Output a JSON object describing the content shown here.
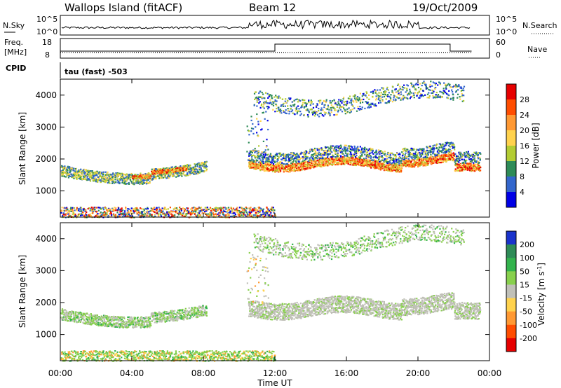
{
  "header": {
    "station": "Wallops Island (fitACF)",
    "beam": "Beam 12",
    "date": "19/Oct/2009"
  },
  "panels_top": {
    "nsky_label": "N.Sky",
    "nsky_ticks": [
      "10^5",
      "10^0"
    ],
    "nsearch_label": "N.Search",
    "nsearch_ticks": [
      "10^5",
      "10^0"
    ],
    "freq_label": "Freq.",
    "freq_unit": "[MHz]",
    "freq_ticks": [
      "18",
      "8"
    ],
    "nave_label": "Nave",
    "nave_ticks": [
      "60",
      "0"
    ],
    "cpid_label": "CPID",
    "cpid_text": "tau (fast) -503"
  },
  "chart_data": [
    {
      "type": "heatmap",
      "name": "power",
      "ylabel": "Slant Range [km]",
      "yticks": [
        1000,
        2000,
        3000,
        4000
      ],
      "ylim": [
        180,
        4500
      ],
      "xlim": [
        0,
        24
      ],
      "colorbar": {
        "label": "Power [dB]",
        "ticks": [
          "28",
          "24",
          "20",
          "16",
          "12",
          "8",
          "4"
        ],
        "colors": [
          "#e60000",
          "#ff4d00",
          "#ff9933",
          "#ffd24d",
          "#b3cc33",
          "#2e8b57",
          "#3366cc",
          "#0000e6"
        ]
      },
      "echo_regions": [
        {
          "t0": 0.0,
          "t1": 8.1,
          "r_mid": 1650,
          "r_half": 170,
          "note": "early band"
        },
        {
          "t0": 10.5,
          "t1": 23.4,
          "r_mid": 1950,
          "r_half": 200,
          "note": "main band"
        },
        {
          "t0": 10.5,
          "t1": 22.5,
          "r_mid": 3800,
          "r_half": 450,
          "note": "upper patches"
        },
        {
          "t0": 0.0,
          "t1": 12.0,
          "r_mid": 350,
          "r_half": 160,
          "note": "near-range scatter"
        }
      ]
    },
    {
      "type": "heatmap",
      "name": "velocity",
      "ylabel": "Slant Range [km]",
      "xlabel": "Time UT",
      "yticks": [
        1000,
        2000,
        3000,
        4000
      ],
      "ylim": [
        180,
        4500
      ],
      "xlim": [
        0,
        24
      ],
      "xticks": [
        "00:00",
        "04:00",
        "08:00",
        "12:00",
        "16:00",
        "20:00",
        "00:00"
      ],
      "colorbar": {
        "label": "Velocity [m s",
        "label_sup": "-1",
        "ticks": [
          "200",
          "100",
          "50",
          "15",
          "-15",
          "-50",
          "-100",
          "-200"
        ],
        "colors": [
          "#1a33cc",
          "#2e8b57",
          "#33b34d",
          "#88d04d",
          "#c0c0b8",
          "#ffd24d",
          "#ff9933",
          "#ff4d00",
          "#e60000"
        ]
      }
    }
  ]
}
